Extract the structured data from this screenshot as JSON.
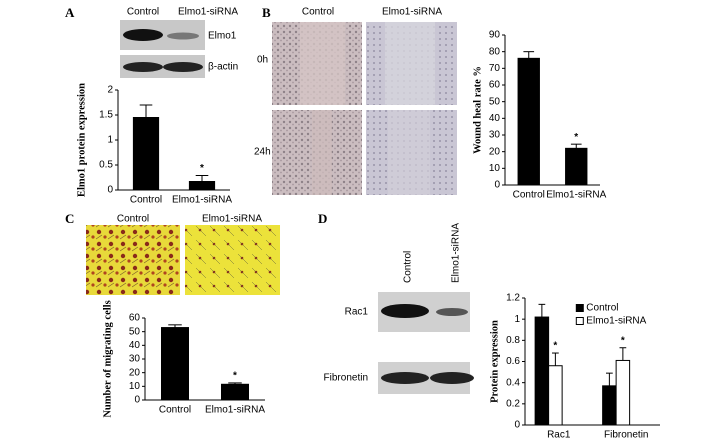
{
  "panels": [
    {
      "letter": "A",
      "columns": [
        "Control",
        "Elmo1-siRNA"
      ],
      "rows": [
        "Elmo1",
        "β-actin"
      ]
    },
    {
      "letter": "B",
      "columns": [
        "Control",
        "Elmo1-siRNA"
      ],
      "rows": [
        "0h",
        "24h"
      ]
    },
    {
      "letter": "C",
      "columns": [
        "Control",
        "Elmo1-siRNA"
      ]
    },
    {
      "letter": "D",
      "columns": [
        "Control",
        "Elmo1-siRNA"
      ],
      "rows": [
        "Rac1",
        "Fibronetin"
      ]
    }
  ],
  "chart_data": [
    {
      "type": "bar",
      "y_label": "Elmo1 protein expression",
      "categories": [
        "Control",
        "Elmo1-siRNA"
      ],
      "values": [
        1.45,
        0.17
      ],
      "errors": [
        0.25,
        0.12
      ],
      "annotations": [
        null,
        "*"
      ],
      "color": "#000000",
      "ylim": [
        0,
        2
      ],
      "yticks": [
        0,
        0.5,
        1,
        1.5,
        2
      ]
    },
    {
      "type": "bar",
      "y_label": "Wound heal rate %",
      "categories": [
        "Control",
        "Elmo1-siRNA"
      ],
      "values": [
        76,
        22
      ],
      "errors": [
        4,
        2.5
      ],
      "annotations": [
        null,
        "*"
      ],
      "color": "#000000",
      "ylim": [
        0,
        90
      ],
      "yticks": [
        0,
        10,
        20,
        30,
        40,
        50,
        60,
        70,
        80,
        90
      ]
    },
    {
      "type": "bar",
      "y_label": "Number of migrating cells",
      "categories": [
        "Control",
        "Elmo1-siRNA"
      ],
      "values": [
        53,
        11.5
      ],
      "errors": [
        2,
        1
      ],
      "annotations": [
        null,
        "*"
      ],
      "color": "#000000",
      "ylim": [
        0,
        60
      ],
      "yticks": [
        0,
        10,
        20,
        30,
        40,
        50,
        60
      ]
    },
    {
      "type": "grouped_bar",
      "y_label": "Protein expression",
      "categories": [
        "Rac1",
        "Fibronetin"
      ],
      "series": [
        {
          "name": "Control",
          "color": "#000000",
          "values": [
            1.02,
            0.37
          ],
          "errors": [
            0.12,
            0.12
          ],
          "annotations": [
            null,
            null
          ]
        },
        {
          "name": "Elmo1-siRNA",
          "color": "#ffffff",
          "values": [
            0.56,
            0.61
          ],
          "errors": [
            0.12,
            0.12
          ],
          "annotations": [
            "*",
            "*"
          ]
        }
      ],
      "legend": "upper right",
      "ylim": [
        0,
        1.2
      ],
      "yticks": [
        0,
        0.2,
        0.4,
        0.6,
        0.8,
        1,
        1.2
      ]
    }
  ]
}
